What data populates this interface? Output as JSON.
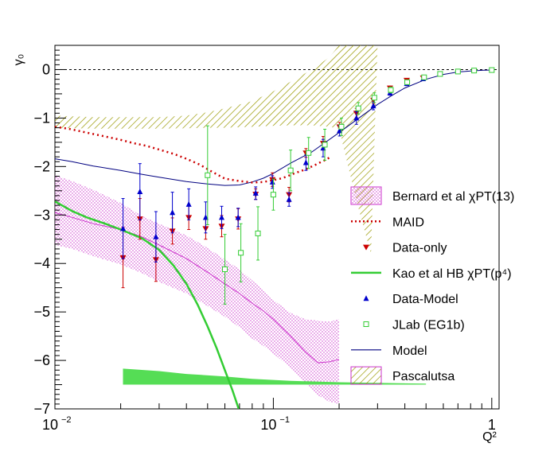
{
  "chart_data": {
    "type": "scatter",
    "title": "",
    "xlabel": "Q²",
    "ylabel": "γ₀",
    "xscale": "log",
    "xlim": [
      0.01,
      1.08
    ],
    "ylim": [
      -7,
      0.5
    ],
    "x_ticks": [
      {
        "v": 0.01,
        "base": "10",
        "exp": "−2"
      },
      {
        "v": 0.1,
        "base": "10",
        "exp": "−1"
      },
      {
        "v": 1,
        "base": "1",
        "exp": ""
      }
    ],
    "y_ticks": [
      {
        "v": 0,
        "label": "0"
      },
      {
        "v": -1,
        "label": "−1"
      },
      {
        "v": -2,
        "label": "−2"
      },
      {
        "v": -3,
        "label": "−3"
      },
      {
        "v": -4,
        "label": "−4"
      },
      {
        "v": -5,
        "label": "−5"
      },
      {
        "v": -6,
        "label": "−6"
      },
      {
        "v": -7,
        "label": "−7"
      }
    ],
    "grid": false,
    "zero_reference_line": true,
    "legend_position": "right",
    "colors": {
      "bernard": "#cc33cc",
      "maid": "#cc0000",
      "data_only": "#cc0000",
      "kao": "#33cc33",
      "data_model": "#0000cc",
      "jlab": "#33cc33",
      "model": "#000080",
      "pascalutsa": "#999900"
    },
    "legend": [
      {
        "key": "bernard",
        "label": "Bernard et al  χPT(13)",
        "style": "box-dots"
      },
      {
        "key": "maid",
        "label": "MAID",
        "style": "dotted-line"
      },
      {
        "key": "data_only",
        "label": "Data-only",
        "style": "triangle-down"
      },
      {
        "key": "kao",
        "label": "Kao et al HB χPT(p⁴)",
        "style": "line"
      },
      {
        "key": "data_model",
        "label": "Data-Model",
        "style": "triangle-up"
      },
      {
        "key": "jlab",
        "label": "JLab (EG1b)",
        "style": "open-square"
      },
      {
        "key": "model",
        "label": "Model",
        "style": "line"
      },
      {
        "key": "pascalutsa",
        "label": "Pascalutsa",
        "style": "box-hatch"
      }
    ],
    "series": [
      {
        "key": "data_only",
        "type": "scatter",
        "points": [
          {
            "x": 0.0205,
            "y": -3.88,
            "err": 0.62
          },
          {
            "x": 0.0245,
            "y": -3.08,
            "err": 0.42
          },
          {
            "x": 0.029,
            "y": -3.92,
            "err": 0.45
          },
          {
            "x": 0.0345,
            "y": -3.33,
            "err": 0.27
          },
          {
            "x": 0.041,
            "y": -3.05,
            "err": 0.25
          },
          {
            "x": 0.049,
            "y": -3.28,
            "err": 0.22
          },
          {
            "x": 0.058,
            "y": -3.23,
            "err": 0.22
          },
          {
            "x": 0.069,
            "y": -3.08,
            "err": 0.21
          },
          {
            "x": 0.083,
            "y": -2.57,
            "err": 0.11
          },
          {
            "x": 0.099,
            "y": -2.27,
            "err": 0.14
          },
          {
            "x": 0.118,
            "y": -2.58,
            "err": 0.15
          },
          {
            "x": 0.141,
            "y": -1.72,
            "err": 0.09
          },
          {
            "x": 0.169,
            "y": -1.52,
            "err": 0.14
          },
          {
            "x": 0.201,
            "y": -1.18,
            "err": 0.09
          },
          {
            "x": 0.24,
            "y": -0.9,
            "err": 0.1
          },
          {
            "x": 0.287,
            "y": -0.63,
            "err": 0.07
          },
          {
            "x": 0.342,
            "y": -0.38,
            "err": 0.04
          },
          {
            "x": 0.408,
            "y": -0.22,
            "err": 0.03
          },
          {
            "x": 0.485,
            "y": -0.17,
            "err": 0.03
          }
        ]
      },
      {
        "key": "data_model",
        "type": "scatter",
        "points": [
          {
            "x": 0.0205,
            "y": -3.28,
            "err": 0.62
          },
          {
            "x": 0.0245,
            "y": -2.52,
            "err": 0.58
          },
          {
            "x": 0.029,
            "y": -3.45,
            "err": 0.52
          },
          {
            "x": 0.0345,
            "y": -2.95,
            "err": 0.42
          },
          {
            "x": 0.041,
            "y": -2.78,
            "err": 0.32
          },
          {
            "x": 0.049,
            "y": -3.05,
            "err": 0.32
          },
          {
            "x": 0.058,
            "y": -3.05,
            "err": 0.23
          },
          {
            "x": 0.069,
            "y": -3.05,
            "err": 0.19
          },
          {
            "x": 0.083,
            "y": -2.55,
            "err": 0.13
          },
          {
            "x": 0.099,
            "y": -2.32,
            "err": 0.13
          },
          {
            "x": 0.118,
            "y": -2.68,
            "err": 0.14
          },
          {
            "x": 0.141,
            "y": -1.92,
            "err": 0.16
          },
          {
            "x": 0.169,
            "y": -1.62,
            "err": 0.18
          },
          {
            "x": 0.201,
            "y": -1.26,
            "err": 0.11
          },
          {
            "x": 0.24,
            "y": -1.0,
            "err": 0.13
          },
          {
            "x": 0.287,
            "y": -0.75,
            "err": 0.08
          },
          {
            "x": 0.342,
            "y": -0.48,
            "err": 0.05
          },
          {
            "x": 0.408,
            "y": -0.29,
            "err": 0.04
          },
          {
            "x": 0.485,
            "y": -0.19,
            "err": 0.03
          }
        ]
      },
      {
        "key": "jlab",
        "type": "scatter",
        "points": [
          {
            "x": 0.05,
            "y": -2.18,
            "err": 1.02
          },
          {
            "x": 0.06,
            "y": -4.12,
            "err": 0.72
          },
          {
            "x": 0.071,
            "y": -3.78,
            "err": 0.6
          },
          {
            "x": 0.085,
            "y": -3.38,
            "err": 0.55
          },
          {
            "x": 0.1,
            "y": -2.58,
            "err": 0.32
          },
          {
            "x": 0.12,
            "y": -2.08,
            "err": 0.42
          },
          {
            "x": 0.145,
            "y": -1.72,
            "err": 0.32
          },
          {
            "x": 0.172,
            "y": -1.55,
            "err": 0.32
          },
          {
            "x": 0.205,
            "y": -1.18,
            "err": 0.18
          },
          {
            "x": 0.245,
            "y": -0.8,
            "err": 0.12
          },
          {
            "x": 0.29,
            "y": -0.58,
            "err": 0.1
          },
          {
            "x": 0.345,
            "y": -0.42,
            "err": 0.06
          },
          {
            "x": 0.41,
            "y": -0.26,
            "err": 0.04
          },
          {
            "x": 0.49,
            "y": -0.16,
            "err": 0.03
          },
          {
            "x": 0.58,
            "y": -0.09,
            "err": 0.02
          },
          {
            "x": 0.7,
            "y": -0.04,
            "err": 0.01
          },
          {
            "x": 0.83,
            "y": -0.02,
            "err": 0.01
          },
          {
            "x": 1.0,
            "y": -0.01,
            "err": 0.01
          }
        ]
      },
      {
        "key": "model",
        "type": "line",
        "points": [
          [
            0.01,
            -1.84
          ],
          [
            0.012,
            -1.9
          ],
          [
            0.015,
            -1.99
          ],
          [
            0.02,
            -2.08
          ],
          [
            0.025,
            -2.16
          ],
          [
            0.03,
            -2.22
          ],
          [
            0.04,
            -2.31
          ],
          [
            0.05,
            -2.36
          ],
          [
            0.06,
            -2.39
          ],
          [
            0.07,
            -2.38
          ],
          [
            0.08,
            -2.32
          ],
          [
            0.09,
            -2.24
          ],
          [
            0.1,
            -2.14
          ],
          [
            0.12,
            -1.93
          ],
          [
            0.15,
            -1.7
          ],
          [
            0.2,
            -1.3
          ],
          [
            0.25,
            -0.98
          ],
          [
            0.3,
            -0.72
          ],
          [
            0.35,
            -0.53
          ],
          [
            0.4,
            -0.38
          ],
          [
            0.5,
            -0.2
          ],
          [
            0.6,
            -0.1
          ],
          [
            0.7,
            -0.05
          ],
          [
            0.8,
            -0.03
          ],
          [
            0.9,
            -0.015
          ],
          [
            1.0,
            -0.008
          ]
        ]
      },
      {
        "key": "maid",
        "type": "dotted-line",
        "points": [
          [
            0.01,
            -1.18
          ],
          [
            0.0115,
            -1.22
          ],
          [
            0.013,
            -1.27
          ],
          [
            0.015,
            -1.33
          ],
          [
            0.017,
            -1.38
          ],
          [
            0.02,
            -1.45
          ],
          [
            0.023,
            -1.52
          ],
          [
            0.026,
            -1.57
          ],
          [
            0.03,
            -1.65
          ],
          [
            0.035,
            -1.74
          ],
          [
            0.04,
            -1.84
          ],
          [
            0.046,
            -1.96
          ],
          [
            0.052,
            -2.1
          ],
          [
            0.06,
            -2.25
          ],
          [
            0.07,
            -2.3
          ],
          [
            0.08,
            -2.33
          ],
          [
            0.09,
            -2.32
          ],
          [
            0.1,
            -2.28
          ],
          [
            0.11,
            -2.24
          ],
          [
            0.125,
            -2.14
          ],
          [
            0.14,
            -2.06
          ],
          [
            0.155,
            -1.97
          ],
          [
            0.17,
            -1.88
          ],
          [
            0.18,
            -1.82
          ]
        ]
      },
      {
        "key": "kao",
        "type": "line",
        "points": [
          [
            0.01,
            -2.72
          ],
          [
            0.012,
            -2.92
          ],
          [
            0.014,
            -3.05
          ],
          [
            0.017,
            -3.18
          ],
          [
            0.02,
            -3.3
          ],
          [
            0.025,
            -3.48
          ],
          [
            0.03,
            -3.72
          ],
          [
            0.035,
            -4.05
          ],
          [
            0.04,
            -4.42
          ],
          [
            0.045,
            -4.85
          ],
          [
            0.05,
            -5.3
          ],
          [
            0.055,
            -5.75
          ],
          [
            0.06,
            -6.2
          ],
          [
            0.065,
            -6.62
          ],
          [
            0.07,
            -7.05
          ]
        ]
      },
      {
        "key": "bernard",
        "type": "band",
        "center": [
          [
            0.01,
            -2.95
          ],
          [
            0.012,
            -3.05
          ],
          [
            0.015,
            -3.18
          ],
          [
            0.02,
            -3.3
          ],
          [
            0.025,
            -3.45
          ],
          [
            0.03,
            -3.62
          ],
          [
            0.04,
            -3.9
          ],
          [
            0.05,
            -4.18
          ],
          [
            0.06,
            -4.42
          ],
          [
            0.07,
            -4.62
          ],
          [
            0.08,
            -4.82
          ],
          [
            0.09,
            -4.98
          ],
          [
            0.1,
            -5.15
          ],
          [
            0.12,
            -5.5
          ],
          [
            0.14,
            -5.82
          ],
          [
            0.16,
            -6.05
          ],
          [
            0.18,
            -6.03
          ],
          [
            0.2,
            -5.98
          ]
        ],
        "upper": [
          [
            0.01,
            -2.18
          ],
          [
            0.012,
            -2.3
          ],
          [
            0.015,
            -2.48
          ],
          [
            0.02,
            -2.75
          ],
          [
            0.025,
            -3.02
          ],
          [
            0.03,
            -3.18
          ],
          [
            0.04,
            -3.42
          ],
          [
            0.05,
            -3.68
          ],
          [
            0.06,
            -3.92
          ],
          [
            0.07,
            -4.12
          ],
          [
            0.08,
            -4.35
          ],
          [
            0.09,
            -4.55
          ],
          [
            0.1,
            -4.75
          ],
          [
            0.12,
            -5.02
          ],
          [
            0.14,
            -5.15
          ],
          [
            0.16,
            -5.18
          ],
          [
            0.18,
            -5.2
          ],
          [
            0.2,
            -5.15
          ]
        ],
        "lower": [
          [
            0.01,
            -3.62
          ],
          [
            0.012,
            -3.7
          ],
          [
            0.015,
            -3.85
          ],
          [
            0.02,
            -4.02
          ],
          [
            0.025,
            -4.2
          ],
          [
            0.03,
            -4.38
          ],
          [
            0.04,
            -4.62
          ],
          [
            0.05,
            -4.88
          ],
          [
            0.06,
            -5.1
          ],
          [
            0.07,
            -5.32
          ],
          [
            0.08,
            -5.55
          ],
          [
            0.09,
            -5.7
          ],
          [
            0.1,
            -5.86
          ],
          [
            0.12,
            -6.15
          ],
          [
            0.14,
            -6.45
          ],
          [
            0.16,
            -6.72
          ],
          [
            0.18,
            -6.85
          ],
          [
            0.2,
            -6.9
          ]
        ]
      },
      {
        "key": "pascalutsa",
        "type": "band",
        "upper": [
          [
            0.01,
            -0.95
          ],
          [
            0.015,
            -0.98
          ],
          [
            0.02,
            -0.98
          ],
          [
            0.03,
            -0.98
          ],
          [
            0.04,
            -0.95
          ],
          [
            0.05,
            -0.88
          ],
          [
            0.06,
            -0.8
          ],
          [
            0.08,
            -0.65
          ],
          [
            0.1,
            -0.45
          ],
          [
            0.12,
            -0.25
          ],
          [
            0.15,
            0.0
          ],
          [
            0.18,
            0.25
          ],
          [
            0.2,
            0.5
          ],
          [
            0.3,
            0.5
          ]
        ],
        "lower": [
          [
            0.01,
            -1.2
          ],
          [
            0.015,
            -1.22
          ],
          [
            0.02,
            -1.22
          ],
          [
            0.03,
            -1.22
          ],
          [
            0.04,
            -1.21
          ],
          [
            0.05,
            -1.2
          ],
          [
            0.06,
            -1.2
          ],
          [
            0.08,
            -1.18
          ],
          [
            0.1,
            -1.16
          ],
          [
            0.12,
            -1.15
          ],
          [
            0.15,
            -1.15
          ],
          [
            0.18,
            -1.18
          ],
          [
            0.2,
            -1.22
          ],
          [
            0.22,
            -2.0
          ],
          [
            0.25,
            -3.0
          ],
          [
            0.28,
            -3.8
          ]
        ]
      },
      {
        "key": "kao",
        "type": "low-band",
        "upper": [
          [
            0.0205,
            -6.17
          ],
          [
            0.03,
            -6.22
          ],
          [
            0.04,
            -6.28
          ],
          [
            0.06,
            -6.33
          ],
          [
            0.08,
            -6.38
          ],
          [
            0.12,
            -6.42
          ],
          [
            0.2,
            -6.45
          ],
          [
            0.5,
            -6.48
          ]
        ],
        "lower": [
          [
            0.0205,
            -6.5
          ],
          [
            0.03,
            -6.5
          ],
          [
            0.04,
            -6.5
          ],
          [
            0.06,
            -6.5
          ],
          [
            0.08,
            -6.5
          ],
          [
            0.12,
            -6.5
          ],
          [
            0.2,
            -6.5
          ],
          [
            0.5,
            -6.5
          ]
        ]
      }
    ]
  }
}
